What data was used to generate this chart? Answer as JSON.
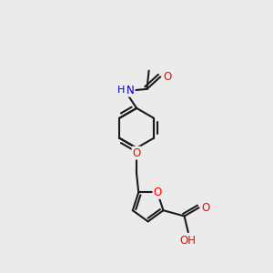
{
  "bg": "#ebebeb",
  "bc": "#1a1a1a",
  "oc": "#ff0000",
  "nc": "#0000cd",
  "lw": 1.5,
  "figsize": [
    3.0,
    3.0
  ],
  "dpi": 100,
  "xlim": [
    -2.5,
    2.5
  ],
  "ylim": [
    -3.5,
    3.5
  ]
}
